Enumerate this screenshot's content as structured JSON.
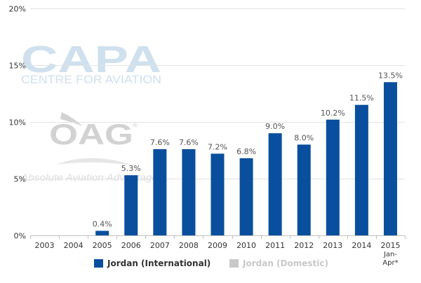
{
  "chart_data": {
    "type": "bar",
    "categories": [
      "2003",
      "2004",
      "2005",
      "2006",
      "2007",
      "2008",
      "2009",
      "2010",
      "2011",
      "2012",
      "2013",
      "2014",
      "2015\nJan-\nApr*"
    ],
    "series": [
      {
        "name": "Jordan (International)",
        "color": "#0a4f9e",
        "values": [
          0,
          0,
          0.4,
          5.3,
          7.6,
          7.6,
          7.2,
          6.8,
          9.0,
          8.0,
          10.2,
          11.5,
          13.5
        ],
        "labels": [
          "",
          "",
          "0.4%",
          "5.3%",
          "7.6%",
          "7.6%",
          "7.2%",
          "6.8%",
          "9.0%",
          "8.0%",
          "10.2%",
          "11.5%",
          "13.5%"
        ]
      },
      {
        "name": "Jordan (Domestic)",
        "color": "#c8c8c8",
        "values": [
          0,
          0,
          0,
          0,
          0,
          0,
          0,
          0,
          0,
          0,
          0,
          0,
          0
        ]
      }
    ],
    "yticks": [
      {
        "value": 0,
        "label": "0%"
      },
      {
        "value": 5,
        "label": "5%"
      },
      {
        "value": 10,
        "label": "10%"
      },
      {
        "value": 15,
        "label": "15%"
      },
      {
        "value": 20,
        "label": "20%"
      }
    ],
    "ylim": [
      0,
      20
    ],
    "grid": true,
    "legend_position": "bottom"
  },
  "watermarks": {
    "capa_logo": "CAPA",
    "capa_subtitle": "CENTRE FOR AVIATION",
    "oag_logo": "OAG",
    "oag_registered": "®",
    "oag_tagline": "Absolute Aviation Advantage"
  }
}
